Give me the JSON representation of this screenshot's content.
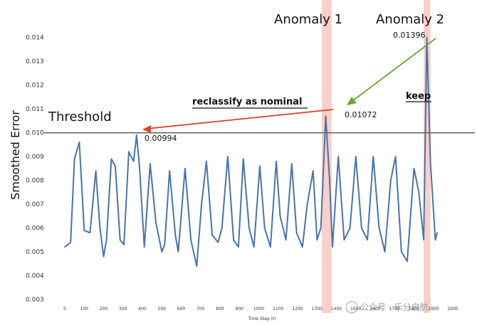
{
  "chart_data": {
    "type": "line",
    "ylabel": "Smoothed Error",
    "xlabel": "Time Step (t)",
    "xlim": [
      0,
      2000
    ],
    "ylim": [
      0.003,
      0.0145
    ],
    "x_ticks": [
      "0",
      "100",
      "200",
      "300",
      "400",
      "500",
      "600",
      "700",
      "800",
      "900",
      "1000",
      "1100",
      "1200",
      "1300",
      "1400",
      "1500",
      "1600",
      "1700",
      "1800",
      "1900",
      "2000"
    ],
    "y_ticks": [
      "0.003",
      "0.004",
      "0.005",
      "0.006",
      "0.007",
      "0.008",
      "0.009",
      "0.010",
      "0.011",
      "0.012",
      "0.013",
      "0.014"
    ],
    "threshold": {
      "label": "Threshold",
      "value": 0.01
    },
    "anomaly_regions": [
      {
        "label": "Anomaly 1",
        "x_range": [
          1325,
          1375
        ]
      },
      {
        "label": "Anomaly 2",
        "x_range": [
          1850,
          1885
        ]
      }
    ],
    "annotations": [
      {
        "text": "0.00994",
        "x": 370,
        "y": 0.00994
      },
      {
        "text": "0.01072",
        "x": 1340,
        "y": 0.01072
      },
      {
        "text": "0.01396",
        "x": 1865,
        "y": 0.01396
      },
      {
        "text": "reclassify as nominal"
      },
      {
        "text": "keep"
      }
    ],
    "series": [
      {
        "color": "#4a74a8",
        "x": [
          0,
          30,
          50,
          75,
          100,
          130,
          160,
          180,
          200,
          215,
          240,
          260,
          285,
          305,
          330,
          355,
          370,
          385,
          410,
          440,
          470,
          500,
          515,
          540,
          570,
          585,
          620,
          650,
          680,
          705,
          730,
          760,
          790,
          810,
          840,
          870,
          895,
          920,
          950,
          975,
          1005,
          1030,
          1060,
          1090,
          1110,
          1140,
          1170,
          1195,
          1225,
          1250,
          1280,
          1300,
          1320,
          1345,
          1365,
          1380,
          1410,
          1440,
          1470,
          1500,
          1530,
          1560,
          1590,
          1620,
          1650,
          1680,
          1705,
          1735,
          1765,
          1800,
          1825,
          1850,
          1866,
          1885,
          1910,
          1920
        ],
        "values": [
          0.0052,
          0.0054,
          0.0089,
          0.0096,
          0.0059,
          0.0058,
          0.0084,
          0.0061,
          0.0048,
          0.0055,
          0.0089,
          0.0086,
          0.0055,
          0.0053,
          0.0092,
          0.0088,
          0.0099,
          0.0086,
          0.0052,
          0.0087,
          0.0062,
          0.005,
          0.0053,
          0.0084,
          0.0057,
          0.005,
          0.0085,
          0.0055,
          0.0044,
          0.007,
          0.0088,
          0.0057,
          0.0054,
          0.006,
          0.009,
          0.0055,
          0.0052,
          0.0089,
          0.006,
          0.0052,
          0.0086,
          0.006,
          0.0052,
          0.0088,
          0.0065,
          0.0055,
          0.0087,
          0.0058,
          0.0052,
          0.007,
          0.0084,
          0.0055,
          0.006,
          0.0107,
          0.008,
          0.0052,
          0.009,
          0.0055,
          0.006,
          0.009,
          0.006,
          0.0055,
          0.009,
          0.006,
          0.005,
          0.008,
          0.009,
          0.005,
          0.0046,
          0.0085,
          0.0075,
          0.0055,
          0.014,
          0.0087,
          0.0055,
          0.0058
        ]
      }
    ]
  }
}
